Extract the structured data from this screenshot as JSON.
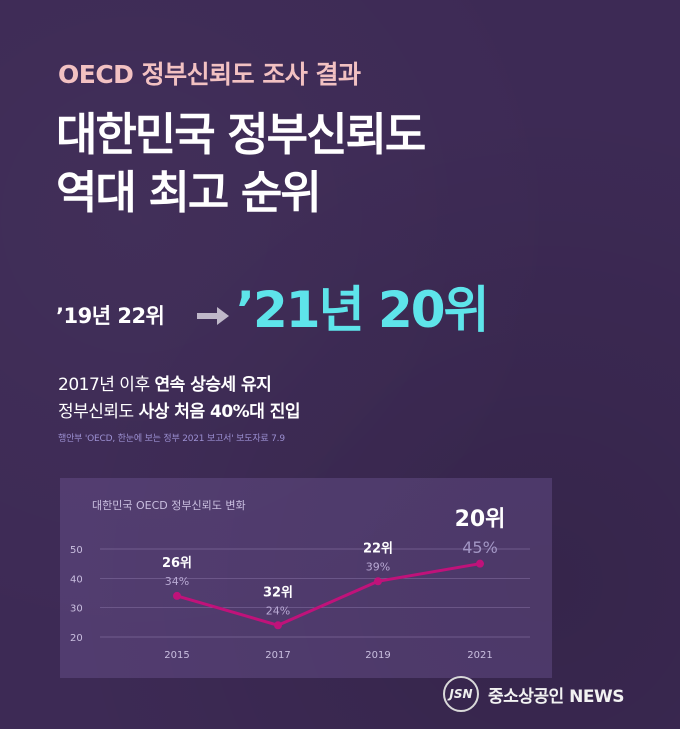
{
  "header": {
    "subtitle": "OECD 정부신뢰도 조사 결과",
    "title_line1": "대한민국 정부신뢰도",
    "title_line2": "역대 최고 순위"
  },
  "rank_change": {
    "previous": "’19년 22위",
    "current": "’21년 20위"
  },
  "description": {
    "line1_plain": "2017년 이후 ",
    "line1_bold": "연속 상승세 유지",
    "line2_plain": "정부신뢰도 ",
    "line2_bold": "사상 처음 40%대 진입"
  },
  "source": "행안부 'OECD, 한눈에 보는 정부 2021 보고서' 보도자료 7.9",
  "footer": {
    "logo_text": "JSN",
    "brand": "중소상공인 NEWS"
  },
  "colors": {
    "accent": "#5ee4ea",
    "line": "#c0127a",
    "subtitle": "#f2c1c2"
  },
  "chart_data": {
    "type": "line",
    "title": "대한민국 OECD 정부신뢰도 변화",
    "x": [
      "2015",
      "2017",
      "2019",
      "2021"
    ],
    "series": [
      {
        "values": [
          34,
          24,
          39,
          45
        ],
        "rank_labels": [
          "26위",
          "32위",
          "22위",
          "20위"
        ],
        "value_labels": [
          "34%",
          "24%",
          "39%",
          "45%"
        ]
      }
    ],
    "ylim": [
      20,
      50
    ],
    "yticks": [
      "20",
      "30",
      "40",
      "50"
    ],
    "grid": true
  }
}
